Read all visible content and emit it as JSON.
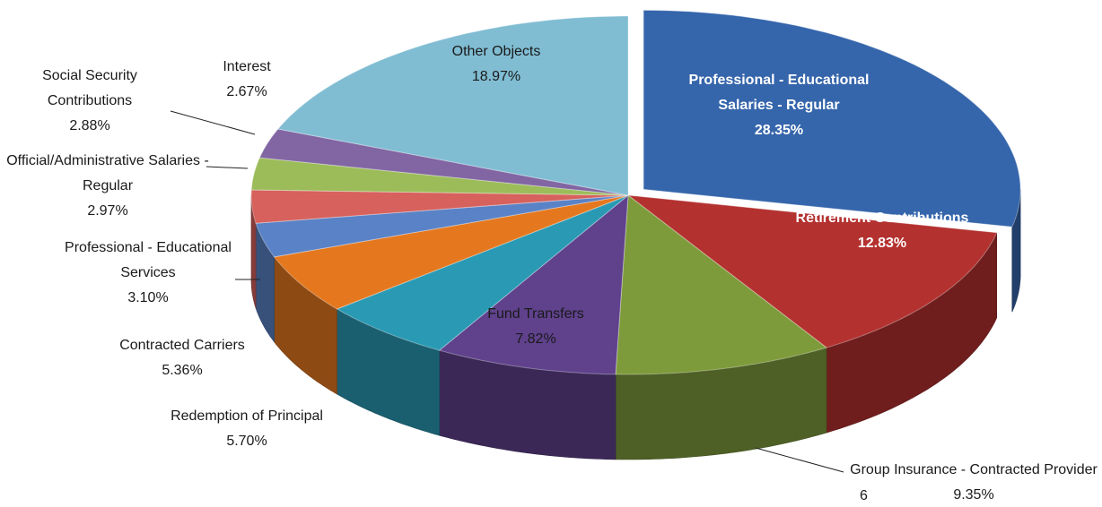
{
  "chart_data": {
    "type": "pie3d",
    "categories": [
      "Professional - Educational Salaries - Regular",
      "Retirement Contributions",
      "Group Insurance - Contracted Provider",
      "Fund Transfers",
      "Redemption of Principal",
      "Contracted Carriers",
      "Professional - Educational Services",
      "Official/Administrative Salaries - Regular",
      "Social Security Contributions",
      "Interest",
      "Other Objects"
    ],
    "values": [
      28.35,
      12.83,
      9.35,
      7.82,
      5.7,
      5.36,
      3.1,
      2.97,
      2.88,
      2.67,
      18.97
    ],
    "value_labels": [
      "28.35%",
      "12.83%",
      "9.35%",
      "7.82%",
      "5.70%",
      "5.36%",
      "3.10%",
      "2.97%",
      "2.88%",
      "2.67%",
      "18.97%"
    ],
    "colors": [
      "#3565ab",
      "#b3312f",
      "#7e9b3b",
      "#5f418c",
      "#2a9ab4",
      "#e5781e",
      "#5a82c6",
      "#d6615d",
      "#9cbc5a",
      "#8166a3",
      "#80bdd3"
    ]
  },
  "page_number": "6"
}
